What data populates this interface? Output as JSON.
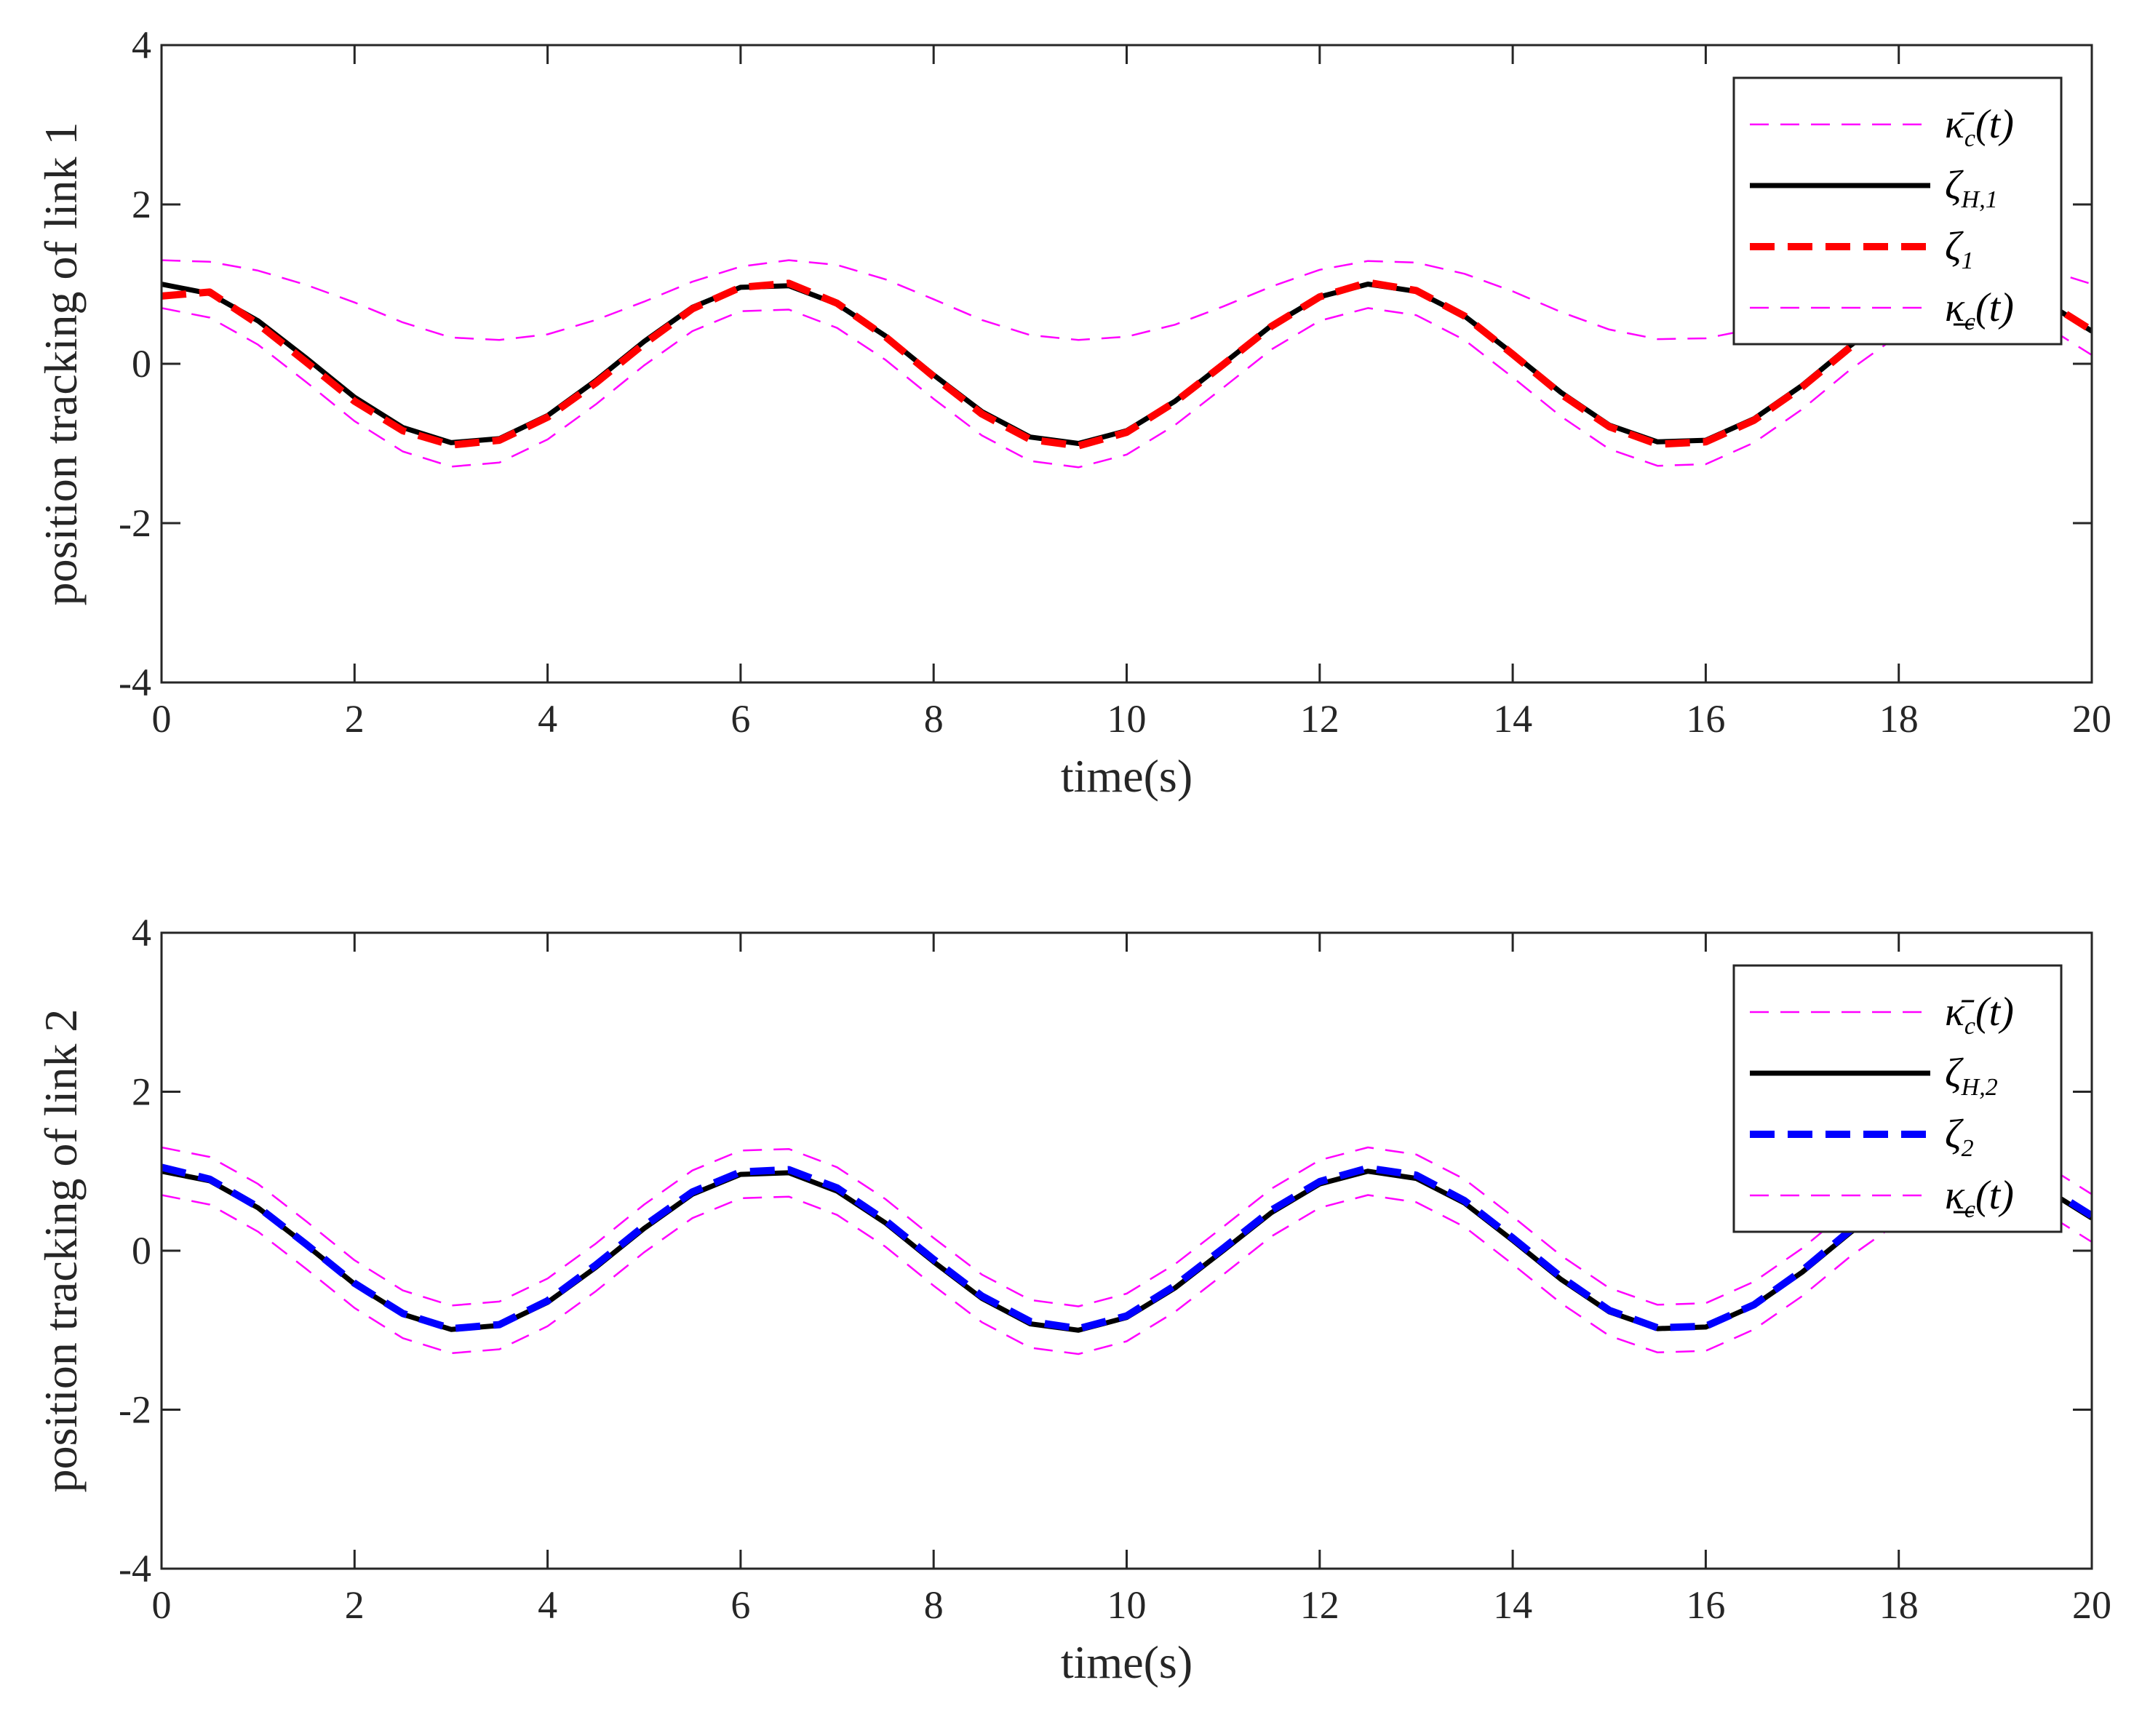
{
  "chart_data": [
    {
      "type": "line",
      "xlabel": "time(s)",
      "ylabel": "position tracking of link 1",
      "xlim": [
        0,
        20
      ],
      "ylim": [
        -4,
        4
      ],
      "xticks": [
        0,
        2,
        4,
        6,
        8,
        10,
        12,
        14,
        16,
        18,
        20
      ],
      "yticks": [
        4,
        2,
        0,
        -2,
        -4
      ],
      "grid": false,
      "legend_position": "top-right",
      "series": [
        {
          "name": "κ̄c(t)",
          "name_main": "κ̄",
          "name_sub": "c",
          "name_tail": "(t)",
          "color": "#ff00ff",
          "style": "dashed-thin",
          "x": [
            0,
            0.5,
            1,
            1.5,
            2,
            2.5,
            3,
            3.5,
            4,
            4.5,
            5,
            5.5,
            6,
            6.5,
            7,
            7.5,
            8,
            8.5,
            9,
            9.5,
            10,
            10.5,
            11,
            11.5,
            12,
            12.5,
            13,
            13.5,
            14,
            14.5,
            15,
            15.5,
            16,
            16.5,
            17,
            17.5,
            18,
            18.5,
            19,
            19.5,
            20
          ],
          "y": [
            1.3,
            1.28,
            1.17,
            0.99,
            0.77,
            0.52,
            0.33,
            0.3,
            0.37,
            0.55,
            0.78,
            1.03,
            1.22,
            1.3,
            1.24,
            1.06,
            0.81,
            0.55,
            0.36,
            0.3,
            0.34,
            0.49,
            0.72,
            0.97,
            1.18,
            1.29,
            1.27,
            1.13,
            0.91,
            0.65,
            0.43,
            0.31,
            0.32,
            0.44,
            0.64,
            0.89,
            1.12,
            1.27,
            1.29,
            1.19,
            1.0
          ]
        },
        {
          "name": "ζH,1",
          "name_main": "ζ",
          "name_sub": "H,1",
          "name_tail": "",
          "color": "#000000",
          "style": "solid",
          "x": [
            0,
            0.5,
            1,
            1.5,
            2,
            2.5,
            3,
            3.5,
            4,
            4.5,
            5,
            5.5,
            6,
            6.5,
            7,
            7.5,
            8,
            8.5,
            9,
            9.5,
            10,
            10.5,
            11,
            11.5,
            12,
            12.5,
            13,
            13.5,
            14,
            14.5,
            15,
            15.5,
            16,
            16.5,
            17,
            17.5,
            18,
            18.5,
            19,
            19.5,
            20
          ],
          "y": [
            1.0,
            0.88,
            0.54,
            0.07,
            -0.42,
            -0.8,
            -0.99,
            -0.94,
            -0.65,
            -0.21,
            0.28,
            0.71,
            0.96,
            0.98,
            0.75,
            0.35,
            -0.14,
            -0.6,
            -0.92,
            -1.0,
            -0.84,
            -0.47,
            0.0,
            0.48,
            0.84,
            1.0,
            0.91,
            0.6,
            0.13,
            -0.36,
            -0.77,
            -0.98,
            -0.96,
            -0.69,
            -0.27,
            0.23,
            0.66,
            0.95,
            0.99,
            0.79,
            0.41
          ]
        },
        {
          "name": "ζ1",
          "name_main": "ζ",
          "name_sub": "1",
          "name_tail": "",
          "color": "#ff0000",
          "style": "dashed-thick",
          "x": [
            0,
            0.5,
            1,
            1.5,
            2,
            2.5,
            3,
            3.5,
            4,
            4.5,
            5,
            5.5,
            6,
            6.5,
            7,
            7.5,
            8,
            8.5,
            9,
            9.5,
            10,
            10.5,
            11,
            11.5,
            12,
            12.5,
            13,
            13.5,
            14,
            14.5,
            15,
            15.5,
            16,
            16.5,
            17,
            17.5,
            18,
            18.5,
            19,
            19.5,
            20
          ],
          "y": [
            0.85,
            0.9,
            0.5,
            0.02,
            -0.47,
            -0.84,
            -1.02,
            -0.96,
            -0.67,
            -0.24,
            0.25,
            0.69,
            0.96,
            1.01,
            0.76,
            0.34,
            -0.16,
            -0.63,
            -0.95,
            -1.03,
            -0.86,
            -0.48,
            -0.01,
            0.47,
            0.84,
            1.02,
            0.92,
            0.6,
            0.12,
            -0.38,
            -0.79,
            -1.01,
            -0.98,
            -0.71,
            -0.29,
            0.21,
            0.65,
            0.95,
            1.0,
            0.8,
            0.42
          ]
        },
        {
          "name": "κ̲c(t)",
          "name_main": "κ̲",
          "name_sub": "c",
          "name_tail": "(t)",
          "color": "#ff00ff",
          "style": "dashed-thin",
          "x": [
            0,
            0.5,
            1,
            1.5,
            2,
            2.5,
            3,
            3.5,
            4,
            4.5,
            5,
            5.5,
            6,
            6.5,
            7,
            7.5,
            8,
            8.5,
            9,
            9.5,
            10,
            10.5,
            11,
            11.5,
            12,
            12.5,
            13,
            13.5,
            14,
            14.5,
            15,
            15.5,
            16,
            16.5,
            17,
            17.5,
            18,
            18.5,
            19,
            19.5,
            20
          ],
          "y": [
            0.7,
            0.58,
            0.24,
            -0.23,
            -0.72,
            -1.1,
            -1.29,
            -1.24,
            -0.95,
            -0.51,
            -0.02,
            0.41,
            0.66,
            0.68,
            0.45,
            0.05,
            -0.44,
            -0.9,
            -1.22,
            -1.3,
            -1.14,
            -0.77,
            -0.3,
            0.18,
            0.54,
            0.7,
            0.61,
            0.3,
            -0.17,
            -0.66,
            -1.07,
            -1.28,
            -1.26,
            -0.99,
            -0.57,
            -0.07,
            0.36,
            0.65,
            0.69,
            0.49,
            0.11
          ]
        }
      ]
    },
    {
      "type": "line",
      "xlabel": "time(s)",
      "ylabel": "position tracking of link 2",
      "xlim": [
        0,
        20
      ],
      "ylim": [
        -4,
        4
      ],
      "xticks": [
        0,
        2,
        4,
        6,
        8,
        10,
        12,
        14,
        16,
        18,
        20
      ],
      "yticks": [
        4,
        2,
        0,
        -2,
        -4
      ],
      "grid": false,
      "legend_position": "top-right",
      "series": [
        {
          "name": "κ̄c(t)",
          "name_main": "κ̄",
          "name_sub": "c",
          "name_tail": "(t)",
          "color": "#ff00ff",
          "style": "dashed-thin",
          "x": [
            0,
            0.5,
            1,
            1.5,
            2,
            2.5,
            3,
            3.5,
            4,
            4.5,
            5,
            5.5,
            6,
            6.5,
            7,
            7.5,
            8,
            8.5,
            9,
            9.5,
            10,
            10.5,
            11,
            11.5,
            12,
            12.5,
            13,
            13.5,
            14,
            14.5,
            15,
            15.5,
            16,
            16.5,
            17,
            17.5,
            18,
            18.5,
            19,
            19.5,
            20
          ],
          "y": [
            1.3,
            1.18,
            0.84,
            0.37,
            -0.12,
            -0.5,
            -0.69,
            -0.64,
            -0.35,
            0.09,
            0.58,
            1.01,
            1.26,
            1.28,
            1.05,
            0.65,
            0.16,
            -0.3,
            -0.62,
            -0.7,
            -0.54,
            -0.17,
            0.3,
            0.78,
            1.14,
            1.3,
            1.21,
            0.9,
            0.43,
            -0.06,
            -0.47,
            -0.68,
            -0.66,
            -0.39,
            0.03,
            0.53,
            0.96,
            1.25,
            1.29,
            1.09,
            0.71
          ]
        },
        {
          "name": "ζH,2",
          "name_main": "ζ",
          "name_sub": "H,2",
          "name_tail": "",
          "color": "#000000",
          "style": "solid",
          "x": [
            0,
            0.5,
            1,
            1.5,
            2,
            2.5,
            3,
            3.5,
            4,
            4.5,
            5,
            5.5,
            6,
            6.5,
            7,
            7.5,
            8,
            8.5,
            9,
            9.5,
            10,
            10.5,
            11,
            11.5,
            12,
            12.5,
            13,
            13.5,
            14,
            14.5,
            15,
            15.5,
            16,
            16.5,
            17,
            17.5,
            18,
            18.5,
            19,
            19.5,
            20
          ],
          "y": [
            1.0,
            0.88,
            0.54,
            0.07,
            -0.42,
            -0.8,
            -0.99,
            -0.94,
            -0.65,
            -0.21,
            0.28,
            0.71,
            0.96,
            0.98,
            0.75,
            0.35,
            -0.14,
            -0.6,
            -0.92,
            -1.0,
            -0.84,
            -0.47,
            0.0,
            0.48,
            0.84,
            1.0,
            0.91,
            0.6,
            0.13,
            -0.36,
            -0.77,
            -0.98,
            -0.96,
            -0.69,
            -0.27,
            0.23,
            0.66,
            0.95,
            0.99,
            0.79,
            0.41
          ]
        },
        {
          "name": "ζ2",
          "name_main": "ζ",
          "name_sub": "2",
          "name_tail": "",
          "color": "#0000ff",
          "style": "dashed-thick",
          "x": [
            0,
            0.5,
            1,
            1.5,
            2,
            2.5,
            3,
            3.5,
            4,
            4.5,
            5,
            5.5,
            6,
            6.5,
            7,
            7.5,
            8,
            8.5,
            9,
            9.5,
            10,
            10.5,
            11,
            11.5,
            12,
            12.5,
            13,
            13.5,
            14,
            14.5,
            15,
            15.5,
            16,
            16.5,
            17,
            17.5,
            18,
            18.5,
            19,
            19.5,
            20
          ],
          "y": [
            1.05,
            0.9,
            0.55,
            0.08,
            -0.41,
            -0.79,
            -0.98,
            -0.93,
            -0.63,
            -0.18,
            0.31,
            0.74,
            0.99,
            1.02,
            0.79,
            0.38,
            -0.11,
            -0.57,
            -0.89,
            -0.98,
            -0.82,
            -0.44,
            0.03,
            0.51,
            0.87,
            1.04,
            0.95,
            0.63,
            0.16,
            -0.33,
            -0.75,
            -0.97,
            -0.95,
            -0.68,
            -0.25,
            0.26,
            0.69,
            0.98,
            1.02,
            0.82,
            0.44
          ]
        },
        {
          "name": "κ̲c(t)",
          "name_main": "κ̲",
          "name_sub": "c",
          "name_tail": "(t)",
          "color": "#ff00ff",
          "style": "dashed-thin",
          "x": [
            0,
            0.5,
            1,
            1.5,
            2,
            2.5,
            3,
            3.5,
            4,
            4.5,
            5,
            5.5,
            6,
            6.5,
            7,
            7.5,
            8,
            8.5,
            9,
            9.5,
            10,
            10.5,
            11,
            11.5,
            12,
            12.5,
            13,
            13.5,
            14,
            14.5,
            15,
            15.5,
            16,
            16.5,
            17,
            17.5,
            18,
            18.5,
            19,
            19.5,
            20
          ],
          "y": [
            0.7,
            0.58,
            0.24,
            -0.23,
            -0.72,
            -1.1,
            -1.29,
            -1.24,
            -0.95,
            -0.51,
            -0.02,
            0.41,
            0.66,
            0.68,
            0.45,
            0.05,
            -0.44,
            -0.9,
            -1.22,
            -1.3,
            -1.14,
            -0.77,
            -0.3,
            0.18,
            0.54,
            0.7,
            0.61,
            0.3,
            -0.17,
            -0.66,
            -1.07,
            -1.28,
            -1.26,
            -0.99,
            -0.57,
            -0.07,
            0.36,
            0.65,
            0.69,
            0.49,
            0.11
          ]
        }
      ]
    }
  ]
}
